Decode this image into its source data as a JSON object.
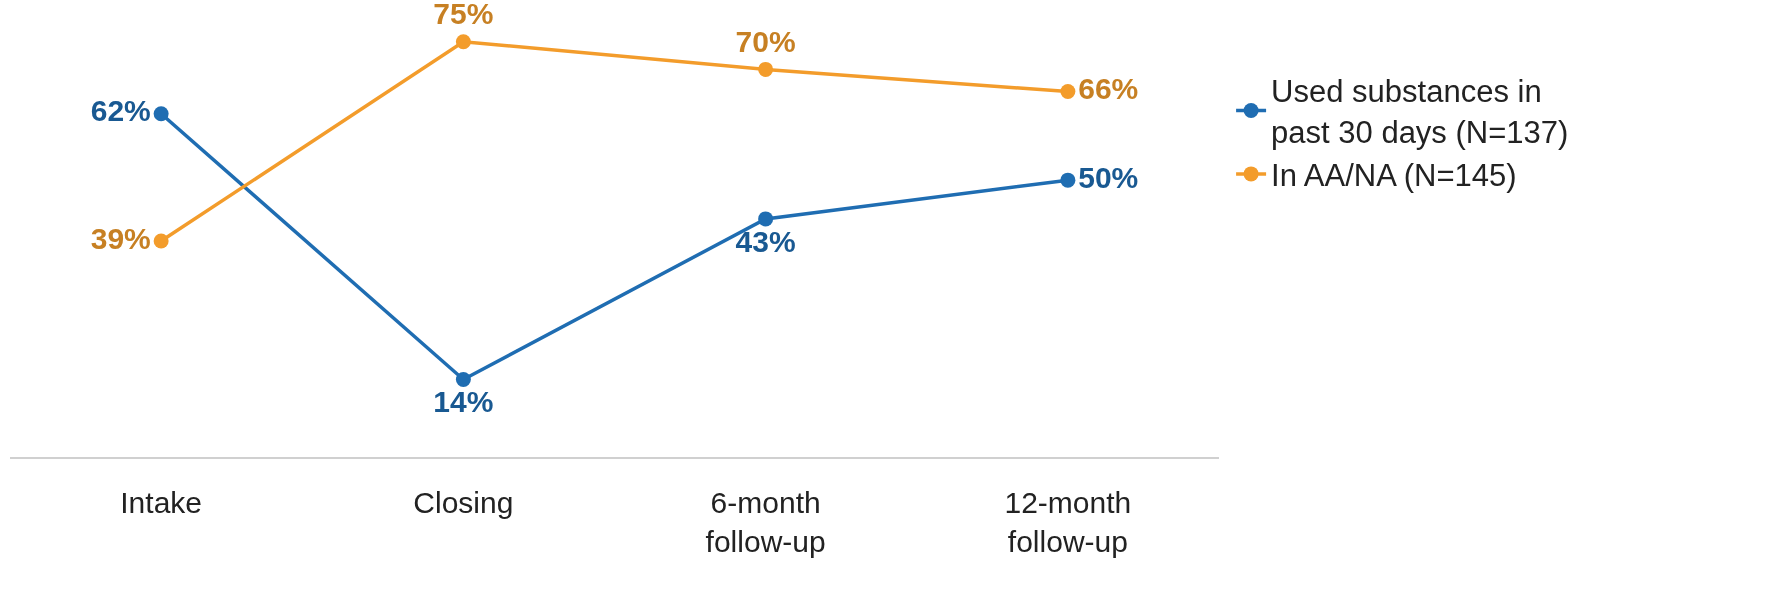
{
  "chart_data": {
    "type": "line",
    "categories": [
      "Intake",
      "Closing",
      "6-month follow-up",
      "12-month follow-up"
    ],
    "series": [
      {
        "name": "Used substances in past 30 days (N=137)",
        "color": "#1f6db2",
        "values": [
          62,
          14,
          43,
          50
        ],
        "value_labels": [
          "62%",
          "14%",
          "43%",
          "50%"
        ]
      },
      {
        "name": "In AA/NA (N=145)",
        "color": "#f39c2b",
        "values": [
          39,
          75,
          70,
          66
        ],
        "value_labels": [
          "39%",
          "75%",
          "70%",
          "66%"
        ]
      }
    ],
    "tick_labels": "x",
    "marker": "circle",
    "line_style": "solid",
    "legend": "top right"
  }
}
